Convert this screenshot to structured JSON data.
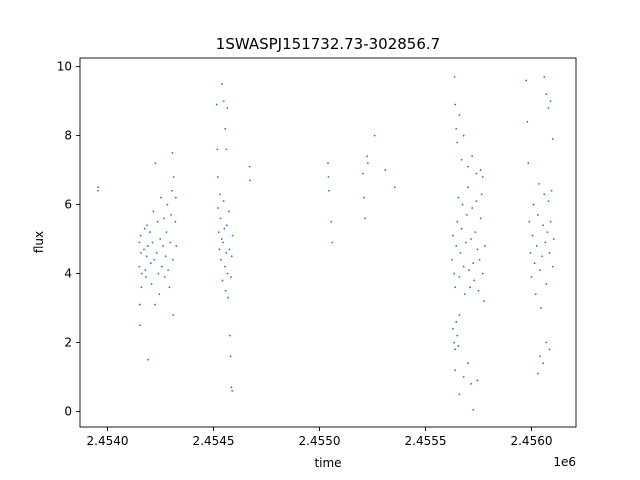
{
  "chart_data": {
    "type": "scatter",
    "title": "1SWASPJ151732.73-302856.7",
    "xlabel": "time",
    "ylabel": "flux",
    "x_offset_label": "1e6",
    "xlim": [
      2453870,
      2456210
    ],
    "ylim": [
      -0.45,
      10.25
    ],
    "x_ticks": [
      {
        "value": 2454000,
        "label": "2.4540"
      },
      {
        "value": 2454500,
        "label": "2.4545"
      },
      {
        "value": 2455000,
        "label": "2.4550"
      },
      {
        "value": 2455500,
        "label": "2.4555"
      },
      {
        "value": 2456000,
        "label": "2.4560"
      }
    ],
    "y_ticks": [
      {
        "value": 0,
        "label": "0"
      },
      {
        "value": 2,
        "label": "2"
      },
      {
        "value": 4,
        "label": "4"
      },
      {
        "value": 6,
        "label": "6"
      },
      {
        "value": 8,
        "label": "8"
      },
      {
        "value": 10,
        "label": "10"
      }
    ],
    "grid": false,
    "marker_color": "#1f77b4",
    "series": [
      {
        "points": [
          [
            2453955,
            6.4
          ],
          [
            2453955,
            6.5
          ],
          [
            2454150,
            4.9
          ],
          [
            2454150,
            4.2
          ],
          [
            2454152,
            3.1
          ],
          [
            2454153,
            2.5
          ],
          [
            2454156,
            5.1
          ],
          [
            2454158,
            4.6
          ],
          [
            2454160,
            3.6
          ],
          [
            2454162,
            4.0
          ],
          [
            2454172,
            4.7
          ],
          [
            2454175,
            5.3
          ],
          [
            2454178,
            4.1
          ],
          [
            2454181,
            3.9
          ],
          [
            2454184,
            4.5
          ],
          [
            2454186,
            5.4
          ],
          [
            2454190,
            4.8
          ],
          [
            2454192,
            1.5
          ],
          [
            2454200,
            5.2
          ],
          [
            2454204,
            4.3
          ],
          [
            2454208,
            3.7
          ],
          [
            2454212,
            4.9
          ],
          [
            2454216,
            5.8
          ],
          [
            2454220,
            4.4
          ],
          [
            2454224,
            3.1
          ],
          [
            2454226,
            7.2
          ],
          [
            2454232,
            4.6
          ],
          [
            2454236,
            5.5
          ],
          [
            2454240,
            4.0
          ],
          [
            2454244,
            3.4
          ],
          [
            2454248,
            5.0
          ],
          [
            2454252,
            6.2
          ],
          [
            2454256,
            4.2
          ],
          [
            2454262,
            4.8
          ],
          [
            2454266,
            5.6
          ],
          [
            2454270,
            3.9
          ],
          [
            2454274,
            4.5
          ],
          [
            2454278,
            5.2
          ],
          [
            2454282,
            6.0
          ],
          [
            2454286,
            4.1
          ],
          [
            2454292,
            3.6
          ],
          [
            2454296,
            4.9
          ],
          [
            2454300,
            5.7
          ],
          [
            2454304,
            6.4
          ],
          [
            2454306,
            7.5
          ],
          [
            2454308,
            4.4
          ],
          [
            2454310,
            2.8
          ],
          [
            2454312,
            6.8
          ],
          [
            2454320,
            5.5
          ],
          [
            2454322,
            6.2
          ],
          [
            2454324,
            4.8
          ],
          [
            2454515,
            8.9
          ],
          [
            2454518,
            7.6
          ],
          [
            2454520,
            6.8
          ],
          [
            2454522,
            5.9
          ],
          [
            2454525,
            5.2
          ],
          [
            2454528,
            4.7
          ],
          [
            2454530,
            6.3
          ],
          [
            2454533,
            5.6
          ],
          [
            2454536,
            4.4
          ],
          [
            2454539,
            5.0
          ],
          [
            2454542,
            3.8
          ],
          [
            2454545,
            4.9
          ],
          [
            2454548,
            6.1
          ],
          [
            2454551,
            5.3
          ],
          [
            2454554,
            4.2
          ],
          [
            2454557,
            3.5
          ],
          [
            2454560,
            4.6
          ],
          [
            2454563,
            5.4
          ],
          [
            2454566,
            4.0
          ],
          [
            2454569,
            3.3
          ],
          [
            2454572,
            5.8
          ],
          [
            2454575,
            4.7
          ],
          [
            2454578,
            2.2
          ],
          [
            2454580,
            1.6
          ],
          [
            2454582,
            3.9
          ],
          [
            2454584,
            0.7
          ],
          [
            2454586,
            4.5
          ],
          [
            2454588,
            0.6
          ],
          [
            2454590,
            5.1
          ],
          [
            2454540,
            9.5
          ],
          [
            2454548,
            9.0
          ],
          [
            2454555,
            8.2
          ],
          [
            2454560,
            7.6
          ],
          [
            2454565,
            8.8
          ],
          [
            2454670,
            7.1
          ],
          [
            2454672,
            6.7
          ],
          [
            2455040,
            7.2
          ],
          [
            2455042,
            6.8
          ],
          [
            2455045,
            6.4
          ],
          [
            2455055,
            5.5
          ],
          [
            2455060,
            4.9
          ],
          [
            2455205,
            6.9
          ],
          [
            2455210,
            6.2
          ],
          [
            2455215,
            5.6
          ],
          [
            2455225,
            7.4
          ],
          [
            2455228,
            7.2
          ],
          [
            2455260,
            8.0
          ],
          [
            2455310,
            7.0
          ],
          [
            2455355,
            6.5
          ],
          [
            2455630,
            2.4
          ],
          [
            2455635,
            2.0
          ],
          [
            2455640,
            1.8
          ],
          [
            2455645,
            2.6
          ],
          [
            2455650,
            2.2
          ],
          [
            2455655,
            1.9
          ],
          [
            2455660,
            2.8
          ],
          [
            2455625,
            4.4
          ],
          [
            2455630,
            5.1
          ],
          [
            2455635,
            4.0
          ],
          [
            2455640,
            3.6
          ],
          [
            2455645,
            4.8
          ],
          [
            2455650,
            5.5
          ],
          [
            2455655,
            6.2
          ],
          [
            2455660,
            3.9
          ],
          [
            2455665,
            4.6
          ],
          [
            2455670,
            5.3
          ],
          [
            2455675,
            6.0
          ],
          [
            2455680,
            4.2
          ],
          [
            2455685,
            3.4
          ],
          [
            2455690,
            4.9
          ],
          [
            2455695,
            5.7
          ],
          [
            2455700,
            6.5
          ],
          [
            2455705,
            4.1
          ],
          [
            2455710,
            3.6
          ],
          [
            2455715,
            5.0
          ],
          [
            2455720,
            5.9
          ],
          [
            2455725,
            4.3
          ],
          [
            2455730,
            3.8
          ],
          [
            2455735,
            5.2
          ],
          [
            2455740,
            6.1
          ],
          [
            2455745,
            4.7
          ],
          [
            2455750,
            3.5
          ],
          [
            2455755,
            4.4
          ],
          [
            2455760,
            5.6
          ],
          [
            2455765,
            6.3
          ],
          [
            2455770,
            4.0
          ],
          [
            2455775,
            3.2
          ],
          [
            2455780,
            4.8
          ],
          [
            2455637,
            9.7
          ],
          [
            2455640,
            8.9
          ],
          [
            2455645,
            8.2
          ],
          [
            2455650,
            7.8
          ],
          [
            2455660,
            8.6
          ],
          [
            2455670,
            7.3
          ],
          [
            2455680,
            8.0
          ],
          [
            2455700,
            7.1
          ],
          [
            2455720,
            7.4
          ],
          [
            2455740,
            6.9
          ],
          [
            2455760,
            7.0
          ],
          [
            2455770,
            6.8
          ],
          [
            2455640,
            1.2
          ],
          [
            2455660,
            0.5
          ],
          [
            2455680,
            1.0
          ],
          [
            2455700,
            1.4
          ],
          [
            2455715,
            0.8
          ],
          [
            2455725,
            0.05
          ],
          [
            2455745,
            0.9
          ],
          [
            2455975,
            9.6
          ],
          [
            2455980,
            8.4
          ],
          [
            2455985,
            7.2
          ],
          [
            2455990,
            5.5
          ],
          [
            2455995,
            4.6
          ],
          [
            2456000,
            3.9
          ],
          [
            2456005,
            5.1
          ],
          [
            2456010,
            6.0
          ],
          [
            2456015,
            4.3
          ],
          [
            2456020,
            3.4
          ],
          [
            2456025,
            4.8
          ],
          [
            2456030,
            5.7
          ],
          [
            2456035,
            6.6
          ],
          [
            2456040,
            4.1
          ],
          [
            2456045,
            3.0
          ],
          [
            2456050,
            4.5
          ],
          [
            2456055,
            5.4
          ],
          [
            2456060,
            6.3
          ],
          [
            2456065,
            4.9
          ],
          [
            2456070,
            3.7
          ],
          [
            2456075,
            5.2
          ],
          [
            2456080,
            6.1
          ],
          [
            2456085,
            4.6
          ],
          [
            2456090,
            5.5
          ],
          [
            2456095,
            6.4
          ],
          [
            2456100,
            4.2
          ],
          [
            2456105,
            5.0
          ],
          [
            2456030,
            1.1
          ],
          [
            2456040,
            1.6
          ],
          [
            2456055,
            1.4
          ],
          [
            2456070,
            2.0
          ],
          [
            2456085,
            1.8
          ],
          [
            2456060,
            9.7
          ],
          [
            2456070,
            9.2
          ],
          [
            2456080,
            8.8
          ],
          [
            2456090,
            9.0
          ],
          [
            2456100,
            7.9
          ]
        ]
      }
    ]
  }
}
